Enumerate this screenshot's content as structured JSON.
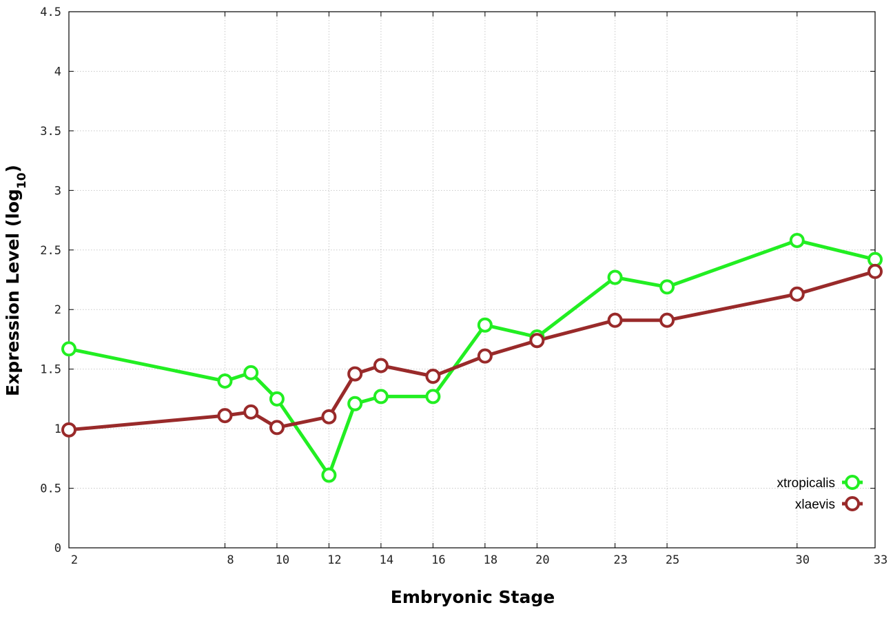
{
  "chart_data": {
    "type": "line",
    "xlabel": "Embryonic Stage",
    "ylabel": {
      "main": "Expression Level (log",
      "sub": "10",
      "close": ")"
    },
    "x": [
      2,
      8,
      9,
      10,
      12,
      13,
      14,
      16,
      18,
      20,
      23,
      25,
      30,
      33
    ],
    "x_tick_labels": [
      "2",
      "8",
      "10",
      "12",
      "14",
      "16",
      "18",
      "20",
      "23",
      "25",
      "30",
      "33"
    ],
    "y_tick_labels": [
      "0",
      "0.5",
      "1",
      "1.5",
      "2",
      "2.5",
      "3",
      "3.5",
      "4",
      "4.5"
    ],
    "xlim": [
      2,
      33
    ],
    "ylim": [
      0,
      4.5
    ],
    "grid": true,
    "legend_position": "bottom-right",
    "series": [
      {
        "name": "xtropicalis",
        "color": "#22ee22",
        "values": [
          1.67,
          1.4,
          1.47,
          1.25,
          0.61,
          1.21,
          1.27,
          1.27,
          1.87,
          1.77,
          2.27,
          2.19,
          2.58,
          2.42
        ]
      },
      {
        "name": "xlaevis",
        "color": "#992a2a",
        "values": [
          0.99,
          1.11,
          1.14,
          1.01,
          1.1,
          1.46,
          1.53,
          1.44,
          1.61,
          1.74,
          1.91,
          1.91,
          2.13,
          2.32
        ]
      }
    ]
  }
}
